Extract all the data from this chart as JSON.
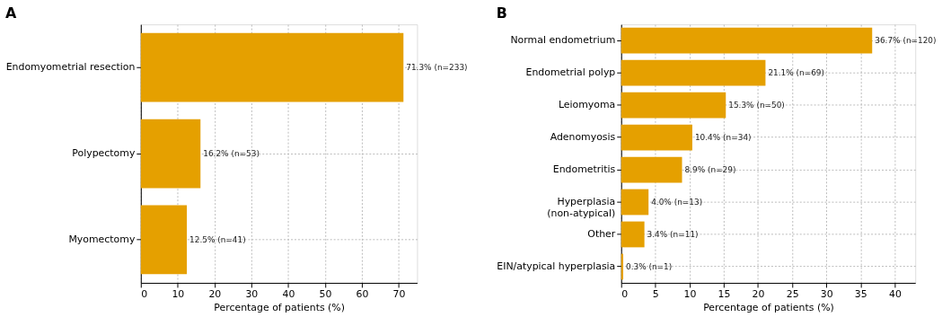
{
  "chart_data": [
    {
      "type": "bar",
      "title": "A",
      "orientation": "horizontal",
      "categories": [
        "Endomyometrial resection",
        "Polypectomy",
        "Myomectomy"
      ],
      "values": [
        71.3,
        16.2,
        12.5
      ],
      "color": "#e5a000",
      "value_labels": [
        "71.3% (n=233)",
        "16.2% (n=53)",
        "12.5% (n=41)"
      ],
      "xlabel": "Percentage of patients (%)",
      "xlim": [
        0,
        75
      ],
      "xticks": [
        0,
        10,
        20,
        30,
        40,
        50,
        60,
        70
      ],
      "grid": true
    },
    {
      "type": "bar",
      "title": "B",
      "orientation": "horizontal",
      "categories": [
        "Normal endometrium",
        "Endometrial polyp",
        "Leiomyoma",
        "Adenomyosis",
        "Endometritis",
        "Hyperplasia\n(non-atypical)",
        "Other",
        "EIN/atypical hyperplasia"
      ],
      "values": [
        36.7,
        21.1,
        15.3,
        10.4,
        8.9,
        4.0,
        3.4,
        0.3
      ],
      "color": "#e5a000",
      "value_labels": [
        "36.7% (n=120)",
        "21.1% (n=69)",
        "15.3% (n=50)",
        "10.4% (n=34)",
        "8.9% (n=29)",
        "4.0% (n=13)",
        "3.4% (n=11)",
        "0.3% (n=1)"
      ],
      "xlabel": "Percentage of patients (%)",
      "xlim": [
        0,
        43
      ],
      "xticks": [
        0,
        5,
        10,
        15,
        20,
        25,
        30,
        35,
        40
      ],
      "grid": true
    }
  ]
}
